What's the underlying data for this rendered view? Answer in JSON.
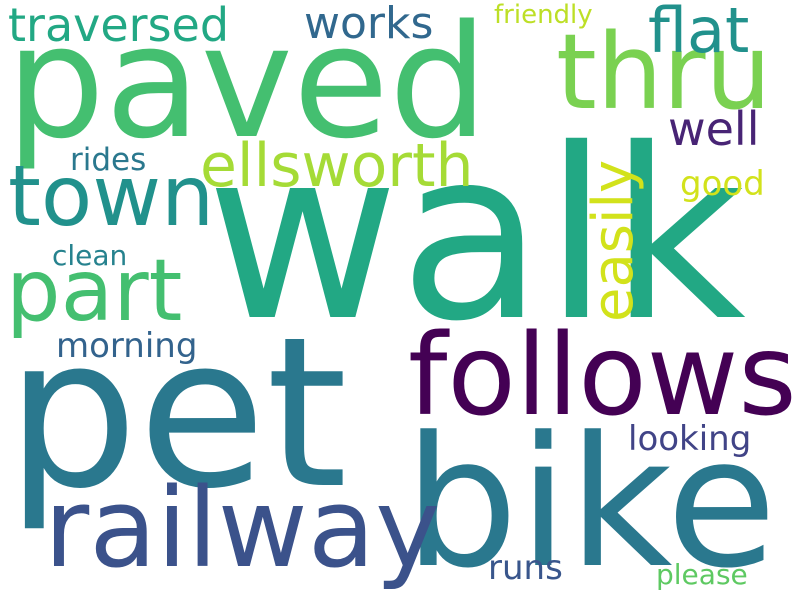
{
  "words": [
    {
      "text": "walk",
      "color": "#22a884"
    },
    {
      "text": "pet",
      "color": "#2a788e"
    },
    {
      "text": "bike",
      "color": "#2a788e"
    },
    {
      "text": "paved",
      "color": "#44bf70"
    },
    {
      "text": "follows",
      "color": "#440154"
    },
    {
      "text": "railway",
      "color": "#3b528b"
    },
    {
      "text": "thru",
      "color": "#7ad151"
    },
    {
      "text": "town",
      "color": "#21918c"
    },
    {
      "text": "part",
      "color": "#44bf70"
    },
    {
      "text": "ellsworth",
      "color": "#a5db36"
    },
    {
      "text": "easily",
      "color": "#d2e21b"
    },
    {
      "text": "flat",
      "color": "#21918c"
    },
    {
      "text": "traversed",
      "color": "#22a884"
    },
    {
      "text": "works",
      "color": "#31688e"
    },
    {
      "text": "well",
      "color": "#482475"
    },
    {
      "text": "friendly",
      "color": "#bddf26"
    },
    {
      "text": "good",
      "color": "#d2e21b"
    },
    {
      "text": "rides",
      "color": "#2a788e"
    },
    {
      "text": "clean",
      "color": "#26828e"
    },
    {
      "text": "morning",
      "color": "#33638d"
    },
    {
      "text": "looking",
      "color": "#414487"
    },
    {
      "text": "runs",
      "color": "#39568c"
    },
    {
      "text": "please",
      "color": "#5ec962"
    }
  ]
}
